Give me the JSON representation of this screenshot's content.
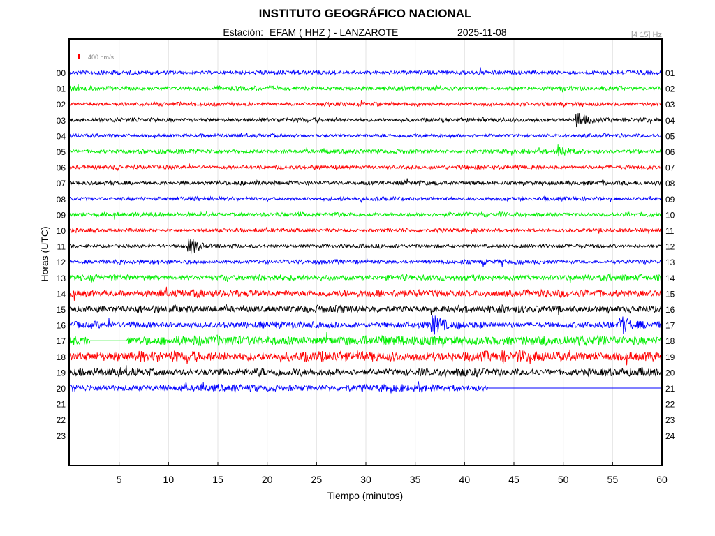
{
  "chart_data": {
    "type": "line",
    "title": "INSTITUTO GEOGRÁFICO NACIONAL",
    "station_prefix": "Estación:",
    "station": "EFAM ( HHZ ) - LANZAROTE",
    "date": "2025-11-08",
    "filter": "[4 15] Hz",
    "scale_label": "400 nm/s",
    "xlabel": "Tiempo (minutos)",
    "ylabel": "Horas (UTC)",
    "xlim": [
      0,
      60
    ],
    "xticks": [
      5,
      10,
      15,
      20,
      25,
      30,
      35,
      40,
      45,
      50,
      55,
      60
    ],
    "grid": true,
    "left_labels": [
      "00",
      "01",
      "02",
      "03",
      "04",
      "05",
      "06",
      "07",
      "08",
      "09",
      "10",
      "11",
      "12",
      "13",
      "14",
      "15",
      "16",
      "17",
      "18",
      "19",
      "20",
      "21",
      "22",
      "23"
    ],
    "right_labels": [
      "01",
      "02",
      "03",
      "04",
      "05",
      "06",
      "07",
      "08",
      "09",
      "10",
      "11",
      "12",
      "13",
      "14",
      "15",
      "16",
      "17",
      "18",
      "19",
      "20",
      "21",
      "22",
      "23",
      "24"
    ],
    "colors": [
      "#0000ff",
      "#00ee00",
      "#ff0000",
      "#000000"
    ],
    "series": [
      {
        "hour": 0,
        "color": "#0000ff",
        "amplitude": 0.32,
        "data_end_min": 60
      },
      {
        "hour": 1,
        "color": "#00ee00",
        "amplitude": 0.34,
        "data_end_min": 60
      },
      {
        "hour": 2,
        "color": "#ff0000",
        "amplitude": 0.3,
        "data_end_min": 60
      },
      {
        "hour": 3,
        "color": "#000000",
        "amplitude": 0.32,
        "data_end_min": 60,
        "events": [
          {
            "min": 51.6,
            "amp": 1.0
          }
        ]
      },
      {
        "hour": 4,
        "color": "#0000ff",
        "amplitude": 0.28,
        "data_end_min": 60
      },
      {
        "hour": 5,
        "color": "#00ee00",
        "amplitude": 0.32,
        "data_end_min": 60,
        "events": [
          {
            "min": 49.8,
            "amp": 0.7
          }
        ]
      },
      {
        "hour": 6,
        "color": "#ff0000",
        "amplitude": 0.3,
        "data_end_min": 60
      },
      {
        "hour": 7,
        "color": "#000000",
        "amplitude": 0.32,
        "data_end_min": 60
      },
      {
        "hour": 8,
        "color": "#0000ff",
        "amplitude": 0.3,
        "data_end_min": 60
      },
      {
        "hour": 9,
        "color": "#00ee00",
        "amplitude": 0.34,
        "data_end_min": 60
      },
      {
        "hour": 10,
        "color": "#ff0000",
        "amplitude": 0.3,
        "data_end_min": 60
      },
      {
        "hour": 11,
        "color": "#000000",
        "amplitude": 0.3,
        "data_end_min": 60,
        "events": [
          {
            "min": 12.3,
            "amp": 0.9
          }
        ]
      },
      {
        "hour": 12,
        "color": "#0000ff",
        "amplitude": 0.32,
        "data_end_min": 60
      },
      {
        "hour": 13,
        "color": "#00ee00",
        "amplitude": 0.45,
        "data_end_min": 60
      },
      {
        "hour": 14,
        "color": "#ff0000",
        "amplitude": 0.55,
        "data_end_min": 60
      },
      {
        "hour": 15,
        "color": "#000000",
        "amplitude": 0.55,
        "data_end_min": 60
      },
      {
        "hour": 16,
        "color": "#0000ff",
        "amplitude": 0.5,
        "data_end_min": 60,
        "events": [
          {
            "min": 37,
            "amp": 0.9
          },
          {
            "min": 56,
            "amp": 0.75
          }
        ]
      },
      {
        "hour": 17,
        "color": "#00ee00",
        "amplitude": 0.75,
        "data_end_min": 60,
        "gap": [
          2,
          5.8
        ]
      },
      {
        "hour": 18,
        "color": "#ff0000",
        "amplitude": 0.8,
        "data_end_min": 60
      },
      {
        "hour": 19,
        "color": "#000000",
        "amplitude": 0.6,
        "data_end_min": 60
      },
      {
        "hour": 20,
        "color": "#0000ff",
        "amplitude": 0.55,
        "data_end_min": 42.4
      }
    ]
  }
}
